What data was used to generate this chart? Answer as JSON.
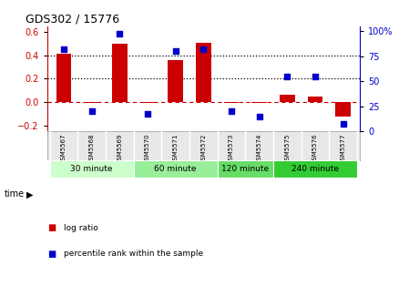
{
  "title": "GDS302 / 15776",
  "samples": [
    "GSM5567",
    "GSM5568",
    "GSM5569",
    "GSM5570",
    "GSM5571",
    "GSM5572",
    "GSM5573",
    "GSM5574",
    "GSM5575",
    "GSM5576",
    "GSM5577"
  ],
  "log_ratio": [
    0.41,
    -0.01,
    0.5,
    -0.01,
    0.36,
    0.51,
    -0.01,
    -0.01,
    0.06,
    0.05,
    -0.12
  ],
  "percentile": [
    82,
    20,
    97,
    18,
    80,
    82,
    20,
    15,
    55,
    55,
    8
  ],
  "bar_color": "#cc0000",
  "dot_color": "#0000cc",
  "ylim_left": [
    -0.25,
    0.65
  ],
  "ylim_right": [
    0,
    105
  ],
  "yticks_left": [
    -0.2,
    0.0,
    0.2,
    0.4,
    0.6
  ],
  "yticks_right": [
    0,
    25,
    50,
    75,
    100
  ],
  "ytick_labels_right": [
    "0",
    "25",
    "50",
    "75",
    "100%"
  ],
  "groups": [
    {
      "label": "30 minute",
      "start": 0,
      "end": 3,
      "color": "#ccffcc"
    },
    {
      "label": "60 minute",
      "start": 3,
      "end": 6,
      "color": "#99ee99"
    },
    {
      "label": "120 minute",
      "start": 6,
      "end": 8,
      "color": "#66dd66"
    },
    {
      "label": "240 minute",
      "start": 8,
      "end": 11,
      "color": "#33cc33"
    }
  ],
  "time_label": "time",
  "legend_log": "log ratio",
  "legend_pct": "percentile rank within the sample",
  "bar_width": 0.55,
  "dot_size": 25,
  "axis_bg": "#e8e8e8"
}
